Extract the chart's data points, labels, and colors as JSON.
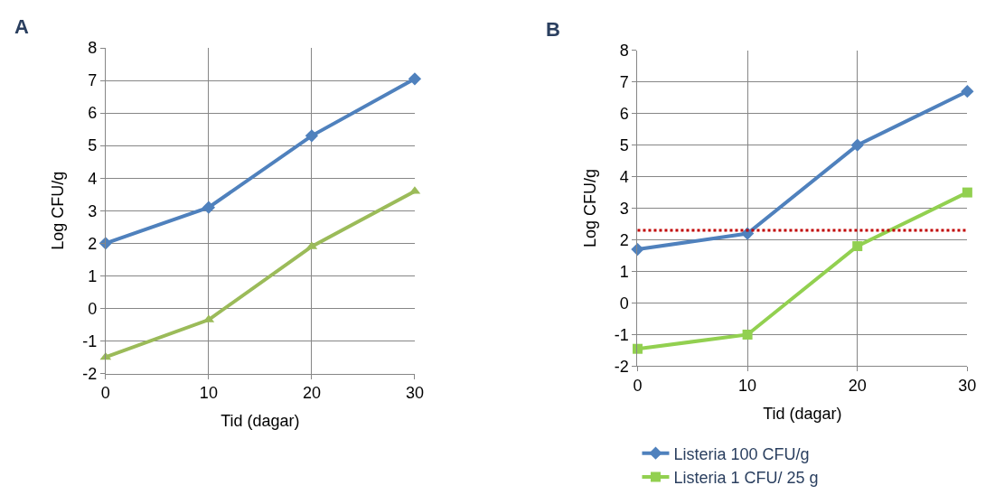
{
  "chart_data": [
    {
      "type": "line",
      "title": "A",
      "xlabel": "Tid (dagar)",
      "ylabel": "Log CFU/g",
      "x": [
        0,
        10,
        20,
        30
      ],
      "xlim": [
        0,
        30
      ],
      "xticks": [
        0,
        10,
        20,
        30
      ],
      "ylim": [
        -2,
        8
      ],
      "yticks": [
        -2,
        -1,
        0,
        1,
        2,
        3,
        4,
        5,
        6,
        7,
        8
      ],
      "grid": true,
      "legend": false,
      "series": [
        {
          "color": "#4f81bd",
          "marker": "diamond",
          "values": [
            2,
            3.1,
            5.3,
            7.05
          ]
        },
        {
          "color": "#9bbb59",
          "marker": "triangle",
          "values": [
            -1.5,
            -0.35,
            1.9,
            3.6
          ]
        }
      ]
    },
    {
      "type": "line",
      "title": "B",
      "xlabel": "Tid (dagar)",
      "ylabel": "Log CFU/g",
      "x": [
        0,
        10,
        20,
        30
      ],
      "xlim": [
        0,
        30
      ],
      "xticks": [
        0,
        10,
        20,
        30
      ],
      "ylim": [
        -2,
        8
      ],
      "yticks": [
        -2,
        -1,
        0,
        1,
        2,
        3,
        4,
        5,
        6,
        7,
        8
      ],
      "grid": true,
      "legend": "bottom",
      "ref_lines": [
        {
          "axis": "y",
          "value": 2.3,
          "color": "#c00000",
          "line_style": "dotted"
        }
      ],
      "series": [
        {
          "name": "Listeria 100 CFU/g",
          "color": "#4f81bd",
          "marker": "diamond",
          "values": [
            1.7,
            2.2,
            5.0,
            6.7
          ]
        },
        {
          "name": "Listeria 1 CFU/ 25 g",
          "color": "#92d050",
          "marker": "square",
          "values": [
            -1.45,
            -1.0,
            1.8,
            3.5
          ]
        }
      ]
    }
  ]
}
